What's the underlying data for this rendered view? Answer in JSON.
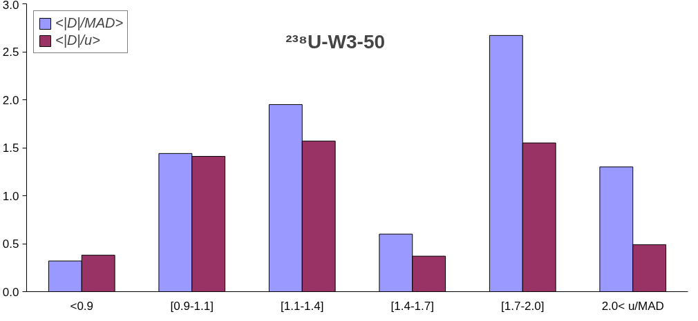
{
  "chart_data": {
    "type": "bar",
    "title": "²³⁸U-W3-50",
    "categories": [
      "<0.9",
      "[0.9-1.1]",
      "[1.1-1.4]",
      "[1.4-1.7]",
      "[1.7-2.0]",
      "2.0< u/MAD"
    ],
    "series": [
      {
        "name": "<|D|/MAD>",
        "color": "#9999ff",
        "values": [
          0.32,
          1.44,
          1.95,
          0.6,
          2.67,
          1.3
        ]
      },
      {
        "name": "<|D|/u>",
        "color": "#993366",
        "values": [
          0.38,
          1.41,
          1.57,
          0.37,
          1.55,
          0.49
        ]
      }
    ],
    "ylim": [
      0,
      3
    ],
    "yticks": [
      {
        "value": 0,
        "label": "0.0"
      },
      0.5,
      {
        "value": 1,
        "label": "1.0"
      },
      1.5,
      {
        "value": 2,
        "label": "2.0"
      },
      2.5,
      {
        "value": 3,
        "label": "3.0"
      }
    ],
    "grid": false,
    "legend": "top left"
  }
}
